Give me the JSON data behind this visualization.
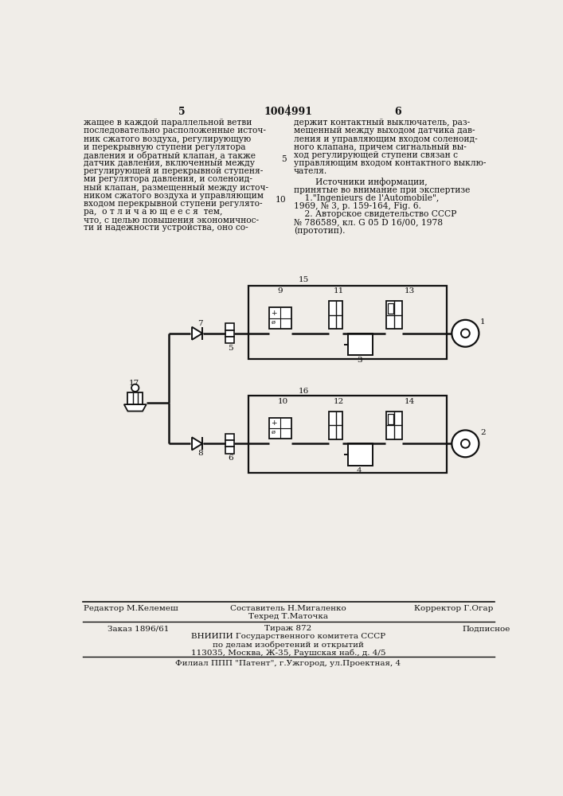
{
  "page_number_left": "5",
  "page_number_center": "1004991",
  "page_number_right": "6",
  "text_left_lines": [
    "жащее в каждой параллельной ветви",
    "последовательно расположенные источ-",
    "ник сжатого воздуха, регулирующую",
    "и перекрывную ступени регулятора",
    "давления и обратный клапан, а также",
    "датчик давления, включенный между",
    "регулирующей и перекрывной ступеня-",
    "ми регулятора давления, и соленоид-",
    "ный клапан, размещенный между источ-",
    "ником сжатого воздуха и управляющим",
    "входом перекрывной ступени регулято-",
    "ра,  о т л и ч а ю щ е е с я  тем,",
    "что, с целью повышения экономичнос-",
    "ти и надежности устройства, оно со-"
  ],
  "line_num_5_at_line": 4,
  "line_num_10_at_line": 9,
  "text_right_lines": [
    "держит контактный выключатель, раз-",
    "мещенный между выходом датчика дав-",
    "ления и управляющим входом соленоид-",
    "ного клапана, причем сигнальный вы-",
    "ход регулирующей ступени связан с",
    "управляющим входом контактного выклю-",
    "чателя."
  ],
  "text_sources_lines": [
    "        Источники информации,",
    "принятые во внимание при экспертизе",
    "    1.\"Ingenieurs de l'Automobile\",",
    "1969, № 3, р. 159-164, Fig. 6.",
    "    2. Авторское свидетельство СССР",
    "№ 786589, кл. G 05 D 16/00, 1978",
    "(прототип)."
  ],
  "footer_col1": "Редактор М.Келемеш",
  "footer_col2a": "Составитель Н.Мигаленко",
  "footer_col2b": "Техред Т.Маточка",
  "footer_col3": "Корректор Г.Огар",
  "footer_order": "Заказ 1896/61",
  "footer_tirazh": "Тираж 872",
  "footer_podp": "Подписное",
  "footer_vnipi": "ВНИИПИ Государственного комитета СССР",
  "footer_dela": "по делам изобретений и открытий",
  "footer_addr": "113035, Москва, Ж-35, Раушская наб., д. 4/5",
  "footer_filial": "Филиал ППП \"Патент\", г.Ужгород, ул.Проектная, 4",
  "bg_color": "#f0ede8",
  "text_color": "#111111",
  "diagram_color": "#111111"
}
